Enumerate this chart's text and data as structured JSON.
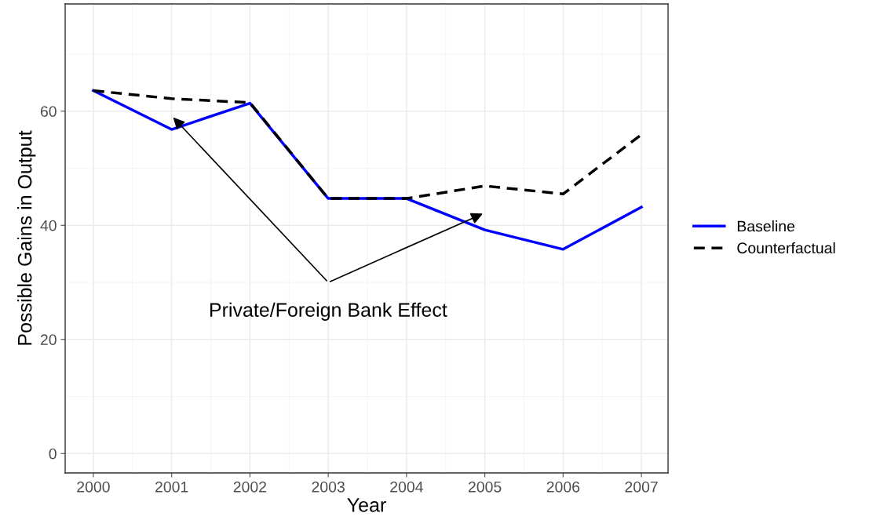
{
  "chart_data": {
    "type": "line",
    "xlabel": "Year",
    "ylabel": "Possible Gains in Output",
    "x": [
      2000,
      2001,
      2002,
      2003,
      2004,
      2005,
      2006,
      2007
    ],
    "series": [
      {
        "name": "Baseline",
        "color": "#0000ff",
        "line_style": "solid",
        "values": [
          63.6,
          56.8,
          61.4,
          44.7,
          44.7,
          39.2,
          35.8,
          43.2
        ]
      },
      {
        "name": "Counterfactual",
        "color": "#000000",
        "line_style": "dashed",
        "values": [
          63.6,
          62.2,
          61.5,
          44.7,
          44.7,
          46.9,
          45.5,
          55.9
        ]
      }
    ],
    "xlim": [
      1999.64,
      2007.34
    ],
    "ylim": [
      -3.4,
      78.8
    ],
    "xticks": [
      2000,
      2001,
      2002,
      2003,
      2004,
      2005,
      2006,
      2007
    ],
    "yticks": [
      0,
      20,
      40,
      60
    ],
    "grid": true,
    "legend": "right",
    "marker": "none",
    "annotations": [
      "Private/Foreign Bank Effect"
    ]
  }
}
